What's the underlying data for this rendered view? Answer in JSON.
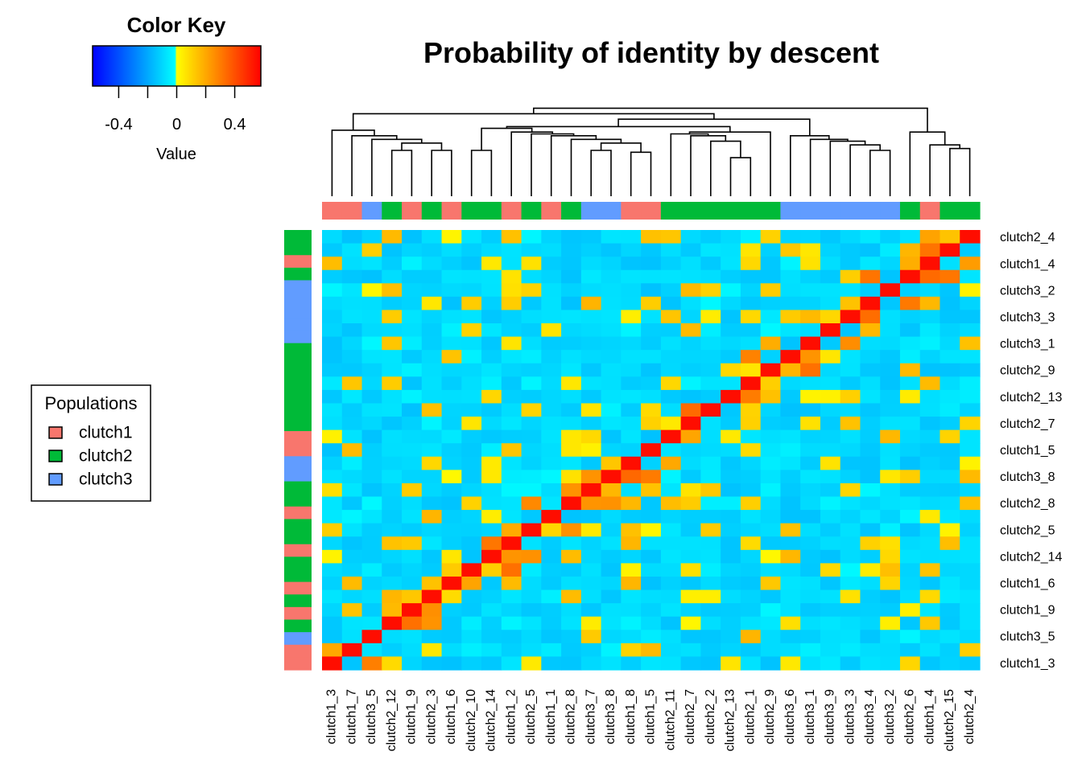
{
  "chart_data": {
    "type": "heatmap",
    "title": "Probability of identity by descent",
    "color_key": {
      "title": "Color Key",
      "xlabel": "Value",
      "ticks": [
        "-0.4",
        "0",
        "0.4"
      ],
      "tick_values": [
        -0.4,
        0,
        0.4
      ],
      "range": [
        -0.58,
        0.58
      ],
      "colors": [
        "#0000ff",
        "#0090ff",
        "#00ffff",
        "#ffff00",
        "#ff9000",
        "#ff0000"
      ]
    },
    "legend": {
      "title": "Populations",
      "items": [
        {
          "label": "clutch1",
          "color": "#f8766d"
        },
        {
          "label": "clutch2",
          "color": "#00ba38"
        },
        {
          "label": "clutch3",
          "color": "#619cff"
        }
      ]
    },
    "col_labels": [
      "clutch1_3",
      "clutch1_7",
      "clutch3_5",
      "clutch2_12",
      "clutch1_9",
      "clutch2_3",
      "clutch1_6",
      "clutch2_10",
      "clutch2_14",
      "clutch1_2",
      "clutch2_5",
      "clutch1_1",
      "clutch2_8",
      "clutch3_7",
      "clutch3_8",
      "clutch1_8",
      "clutch1_5",
      "clutch2_11",
      "clutch2_7",
      "clutch2_2",
      "clutch2_13",
      "clutch2_1",
      "clutch2_9",
      "clutch3_6",
      "clutch3_1",
      "clutch3_9",
      "clutch3_3",
      "clutch3_4",
      "clutch3_2",
      "clutch2_6",
      "clutch1_4",
      "clutch2_15",
      "clutch2_4"
    ],
    "row_labels": [
      "clutch1_3",
      "clutch3_5",
      "clutch1_9",
      "clutch1_6",
      "clutch2_14",
      "clutch2_5",
      "clutch2_8",
      "clutch3_8",
      "clutch1_5",
      "clutch2_7",
      "clutch2_13",
      "clutch2_9",
      "clutch3_1",
      "clutch3_3",
      "clutch3_2",
      "clutch1_4",
      "clutch2_4"
    ],
    "col_groups": [
      "clutch1",
      "clutch1",
      "clutch3",
      "clutch2",
      "clutch1",
      "clutch2",
      "clutch1",
      "clutch2",
      "clutch2",
      "clutch1",
      "clutch2",
      "clutch1",
      "clutch2",
      "clutch3",
      "clutch3",
      "clutch1",
      "clutch1",
      "clutch2",
      "clutch2",
      "clutch2",
      "clutch2",
      "clutch2",
      "clutch2",
      "clutch3",
      "clutch3",
      "clutch3",
      "clutch3",
      "clutch3",
      "clutch3",
      "clutch2",
      "clutch1",
      "clutch2",
      "clutch2"
    ],
    "row_groups_top_to_bottom": [
      "clutch2",
      "clutch2",
      "clutch1",
      "clutch2",
      "clutch3",
      "clutch3",
      "clutch3",
      "clutch3",
      "clutch3",
      "clutch2",
      "clutch2",
      "clutch2",
      "clutch2",
      "clutch2",
      "clutch2",
      "clutch2",
      "clutch1",
      "clutch1",
      "clutch3",
      "clutch3",
      "clutch2",
      "clutch2",
      "clutch1",
      "clutch2",
      "clutch2",
      "clutch1",
      "clutch2",
      "clutch2",
      "clutch1",
      "clutch2",
      "clutch1",
      "clutch2",
      "clutch3",
      "clutch1",
      "clutch1"
    ],
    "dendrogram_merges": [
      [
        3,
        4,
        0.28
      ],
      [
        5,
        6,
        0.3
      ],
      [
        2,
        8,
        0.38
      ],
      [
        7,
        10,
        0.42
      ],
      [
        1,
        11,
        0.47
      ],
      [
        12,
        13,
        0.72
      ],
      [
        14,
        15,
        0.52
      ],
      [
        16,
        17,
        0.55
      ],
      [
        18,
        19,
        0.36
      ],
      [
        20,
        21,
        0.38
      ],
      [
        22,
        23,
        0.56
      ],
      [
        24,
        25,
        0.62
      ],
      [
        26,
        27,
        0.64
      ],
      [
        28,
        29,
        0.68
      ],
      [
        30,
        31,
        0.7
      ],
      [
        32,
        33,
        0.82
      ],
      [
        34,
        35,
        0.44
      ],
      [
        36,
        37,
        0.5
      ],
      [
        38,
        39,
        0.58
      ],
      [
        40,
        41,
        0.72
      ],
      [
        42,
        43,
        0.76
      ],
      [
        44,
        45,
        0.64
      ],
      [
        46,
        47,
        0.72
      ],
      [
        48,
        49,
        0.76
      ],
      [
        50,
        51,
        0.83
      ],
      [
        52,
        53,
        0.85
      ],
      [
        54,
        55,
        0.92
      ],
      [
        56,
        57,
        0.96
      ],
      [
        58,
        59,
        0.98
      ],
      [
        60,
        61,
        1.0
      ],
      [
        62,
        63,
        1.0
      ]
    ]
  }
}
